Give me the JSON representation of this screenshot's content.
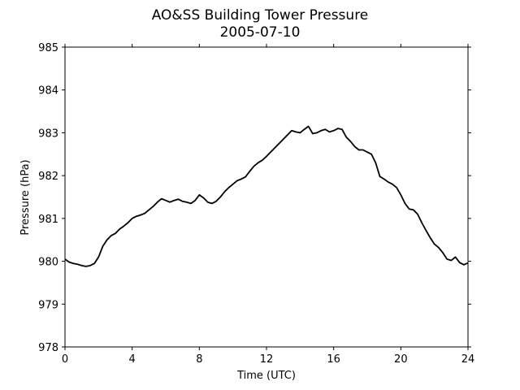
{
  "chart_data": {
    "type": "line",
    "title": "AO&SS Building Tower Pressure",
    "subtitle": "2005-07-10",
    "xlabel": "Time (UTC)",
    "ylabel": "Pressure (hPa)",
    "xlim": [
      0,
      24
    ],
    "ylim": [
      978,
      985
    ],
    "xticks": [
      0,
      4,
      8,
      12,
      16,
      20,
      24
    ],
    "yticks": [
      978,
      979,
      980,
      981,
      982,
      983,
      984,
      985
    ],
    "grid": false,
    "legend": "none",
    "series": [
      {
        "color": "#000000",
        "x": [
          0,
          0.25,
          0.5,
          0.75,
          1,
          1.25,
          1.5,
          1.75,
          2,
          2.25,
          2.5,
          2.75,
          3,
          3.25,
          3.5,
          3.75,
          4,
          4.25,
          4.5,
          4.75,
          5,
          5.25,
          5.5,
          5.75,
          6,
          6.25,
          6.5,
          6.75,
          7,
          7.25,
          7.5,
          7.75,
          8,
          8.25,
          8.5,
          8.75,
          9,
          9.25,
          9.5,
          9.75,
          10,
          10.25,
          10.5,
          10.75,
          11,
          11.25,
          11.5,
          11.75,
          12,
          12.25,
          12.5,
          12.75,
          13,
          13.25,
          13.5,
          13.75,
          14,
          14.25,
          14.5,
          14.75,
          15,
          15.25,
          15.5,
          15.75,
          16,
          16.25,
          16.5,
          16.75,
          17,
          17.25,
          17.5,
          17.75,
          18,
          18.25,
          18.5,
          18.75,
          19,
          19.25,
          19.5,
          19.75,
          20,
          20.25,
          20.5,
          20.75,
          21,
          21.25,
          21.5,
          21.75,
          22,
          22.25,
          22.5,
          22.75,
          23,
          23.25,
          23.5,
          23.75,
          24
        ],
        "values": [
          980.05,
          979.98,
          979.95,
          979.93,
          979.9,
          979.88,
          979.9,
          979.95,
          980.1,
          980.35,
          980.5,
          980.6,
          980.65,
          980.75,
          980.82,
          980.9,
          981.0,
          981.05,
          981.08,
          981.12,
          981.2,
          981.28,
          981.38,
          981.46,
          981.42,
          981.38,
          981.42,
          981.45,
          981.4,
          981.38,
          981.35,
          981.42,
          981.55,
          981.48,
          981.38,
          981.35,
          981.4,
          981.5,
          981.62,
          981.72,
          981.8,
          981.88,
          981.92,
          981.97,
          982.1,
          982.22,
          982.3,
          982.36,
          982.45,
          982.55,
          982.65,
          982.75,
          982.85,
          982.95,
          983.05,
          983.02,
          983.0,
          983.08,
          983.15,
          982.98,
          983.0,
          983.05,
          983.08,
          983.02,
          983.05,
          983.1,
          983.08,
          982.9,
          982.8,
          982.68,
          982.6,
          982.6,
          982.55,
          982.5,
          982.3,
          981.98,
          981.92,
          981.85,
          981.8,
          981.72,
          981.55,
          981.35,
          981.22,
          981.2,
          981.1,
          980.9,
          980.72,
          980.55,
          980.4,
          980.32,
          980.2,
          980.05,
          980.02,
          980.1,
          979.97,
          979.92,
          979.96
        ]
      }
    ]
  }
}
